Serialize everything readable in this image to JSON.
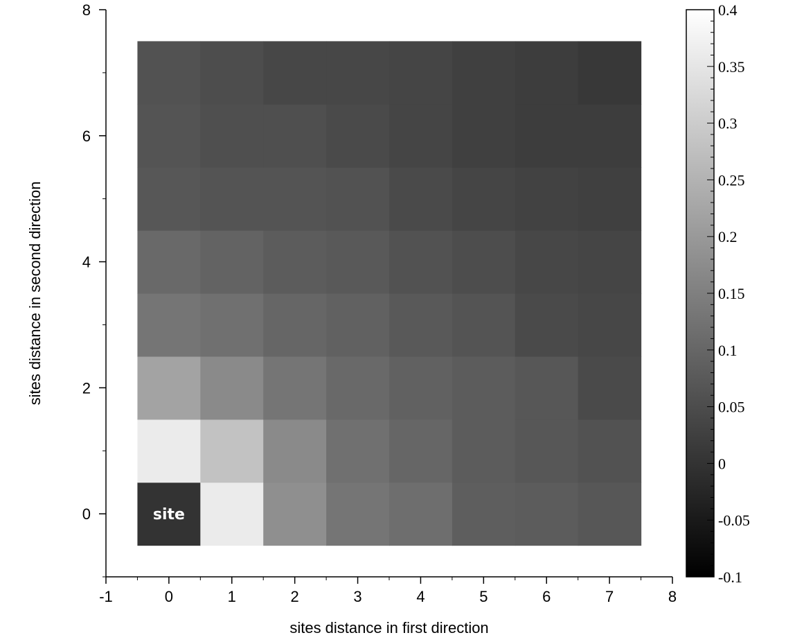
{
  "chart_data": {
    "type": "heatmap",
    "xlabel": "sites distance in first direction",
    "ylabel": "sites distance in second direction",
    "xlim": [
      -1,
      8
    ],
    "ylim": [
      -1,
      8
    ],
    "x_ticks": [
      -1,
      0,
      1,
      2,
      3,
      4,
      5,
      6,
      7,
      8
    ],
    "y_ticks": [
      0,
      2,
      4,
      6,
      8
    ],
    "x": [
      0,
      1,
      2,
      3,
      4,
      5,
      6,
      7
    ],
    "y": [
      0,
      1,
      2,
      3,
      4,
      5,
      6,
      7
    ],
    "values": [
      [
        0.0,
        0.36,
        0.18,
        0.13,
        0.115,
        0.085,
        0.08,
        0.07
      ],
      [
        0.36,
        0.28,
        0.17,
        0.12,
        0.1,
        0.08,
        0.07,
        0.06
      ],
      [
        0.22,
        0.17,
        0.13,
        0.105,
        0.09,
        0.08,
        0.07,
        0.045
      ],
      [
        0.13,
        0.12,
        0.1,
        0.09,
        0.075,
        0.065,
        0.045,
        0.04
      ],
      [
        0.105,
        0.095,
        0.08,
        0.075,
        0.06,
        0.05,
        0.04,
        0.035
      ],
      [
        0.07,
        0.065,
        0.065,
        0.06,
        0.045,
        0.035,
        0.03,
        0.025
      ],
      [
        0.065,
        0.055,
        0.055,
        0.045,
        0.035,
        0.025,
        0.02,
        0.02
      ],
      [
        0.06,
        0.05,
        0.04,
        0.04,
        0.035,
        0.025,
        0.02,
        0.01
      ]
    ],
    "colorbar": {
      "min": -0.1,
      "max": 0.4,
      "ticks": [
        -0.1,
        -0.05,
        0,
        0.05,
        0.1,
        0.15,
        0.2,
        0.25,
        0.3,
        0.35,
        0.4
      ],
      "tick_labels": [
        "-0.1",
        "-0.05",
        "0",
        "0.05",
        "0.1",
        "0.15",
        "0.2",
        "0.25",
        "0.3",
        "0.35",
        "0.4"
      ],
      "colormap": "grayscale",
      "color_low": "#000000",
      "color_high": "#ffffff"
    },
    "annotations": [
      {
        "x": 0,
        "y": 0,
        "text": "site"
      }
    ],
    "grid": false
  }
}
